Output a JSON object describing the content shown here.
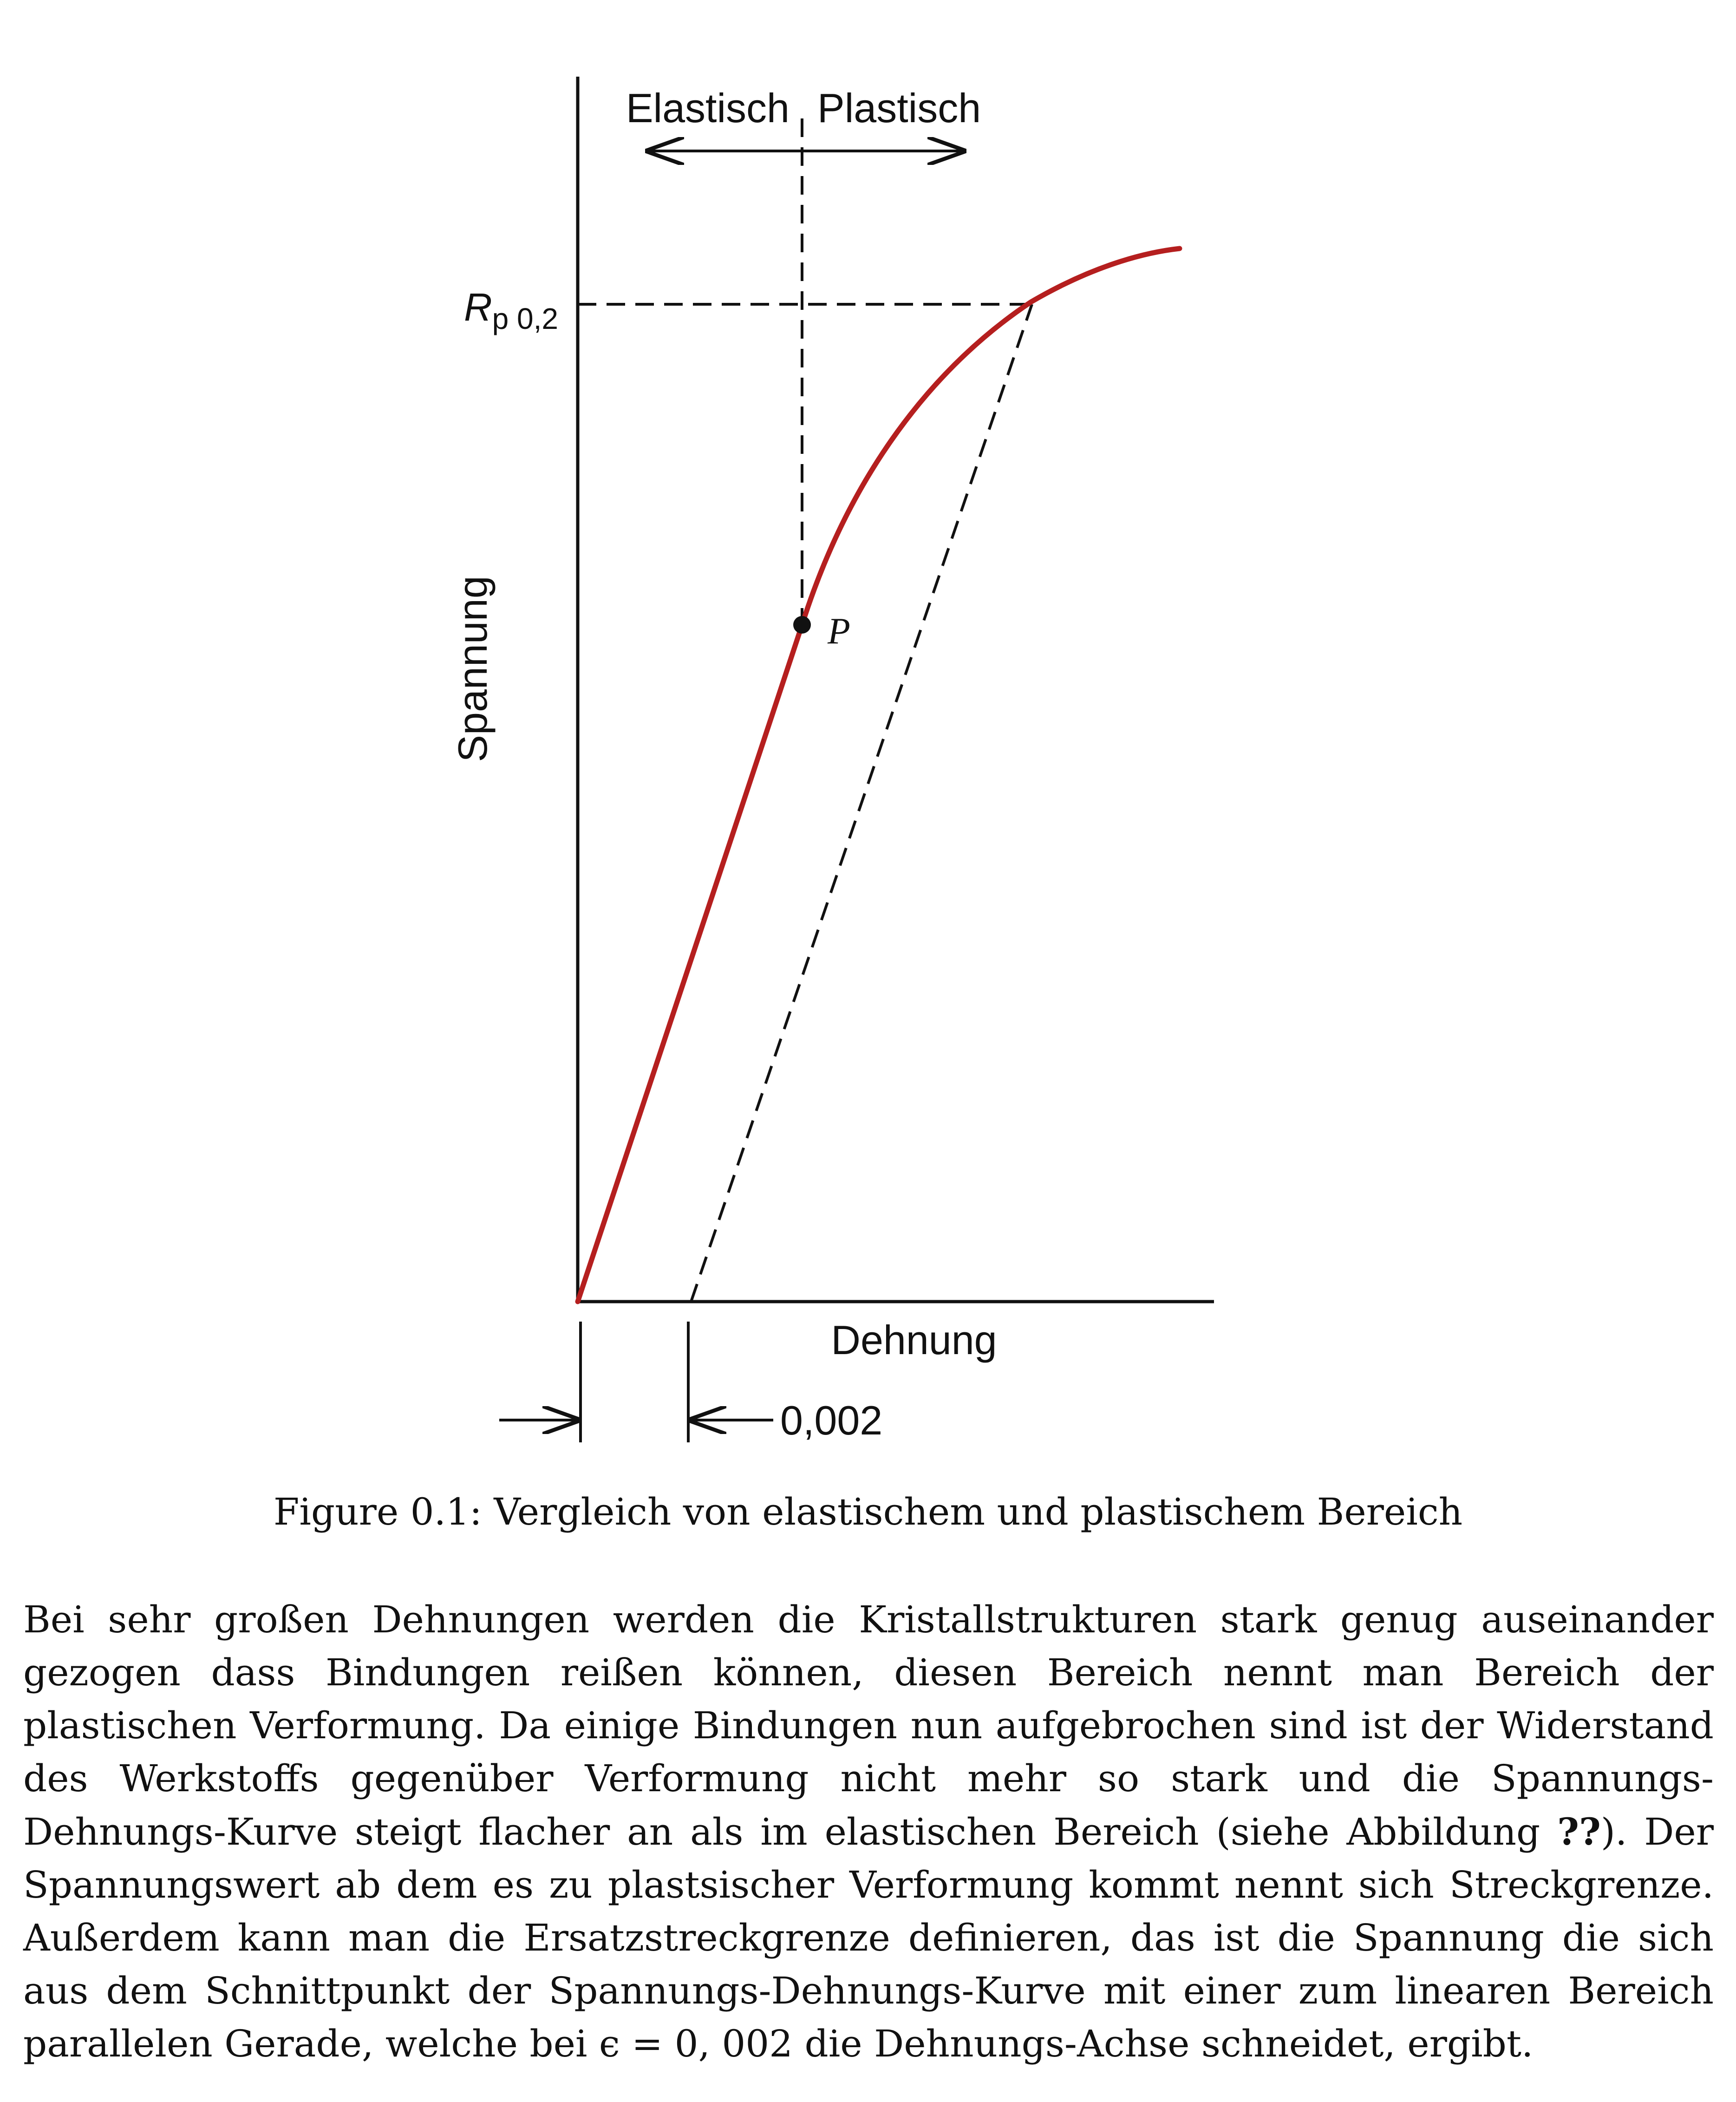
{
  "figure": {
    "region_left_label": "Elastisch",
    "region_right_label": "Plastisch",
    "yield_label_main": "R",
    "yield_label_sub": "p 0,2",
    "y_axis_label": "Spannung",
    "x_axis_label": "Dehnung",
    "point_label": "P",
    "offset_label": "0,002",
    "colors": {
      "curve": "#b51f1f",
      "lines": "#111111"
    }
  },
  "chart_data": {
    "type": "line",
    "xlabel": "Dehnung",
    "ylabel": "Spannung",
    "series": [
      {
        "name": "",
        "shape": "linear elastic rise to point P, then concave plastic curve flattening"
      }
    ],
    "annotations": [
      "Elastisch",
      "Plastisch",
      "P",
      "R p 0,2",
      "0,002"
    ],
    "offset_strain": 0.002
  },
  "caption": {
    "label": "Figure 0.1:",
    "text": "Vergleich von elastischem und plastischem Bereich"
  },
  "paragraph": {
    "part1": "Bei sehr großen Dehnungen werden die Kristallstrukturen stark genug auseinander gezogen dass Bindungen reißen können, diesen Bereich nennt man Bereich der plastischen Verformung. Da einige Bindungen nun aufgebrochen sind ist der Widerstand des Werkstoffs gegenüber Verformung nicht mehr so stark und die Spannungs-Dehnungs-Kurve steigt flacher an als im elastischen Bereich (siehe Abbildung ",
    "ref": "??",
    "part2": "). Der Spannungswert ab dem es zu plastsischer Verformung kommt nennt sich Streckgrenze. Außerdem kann man die Ersatzstreckgrenze definieren, das ist die Spannung die sich aus dem Schnittpunkt der Spannungs-Dehnungs-Kurve mit einer zum linearen Bereich parallelen Gerade, welche bei ϵ = 0, 002 die Dehnungs-Achse schneidet, ergibt."
  }
}
